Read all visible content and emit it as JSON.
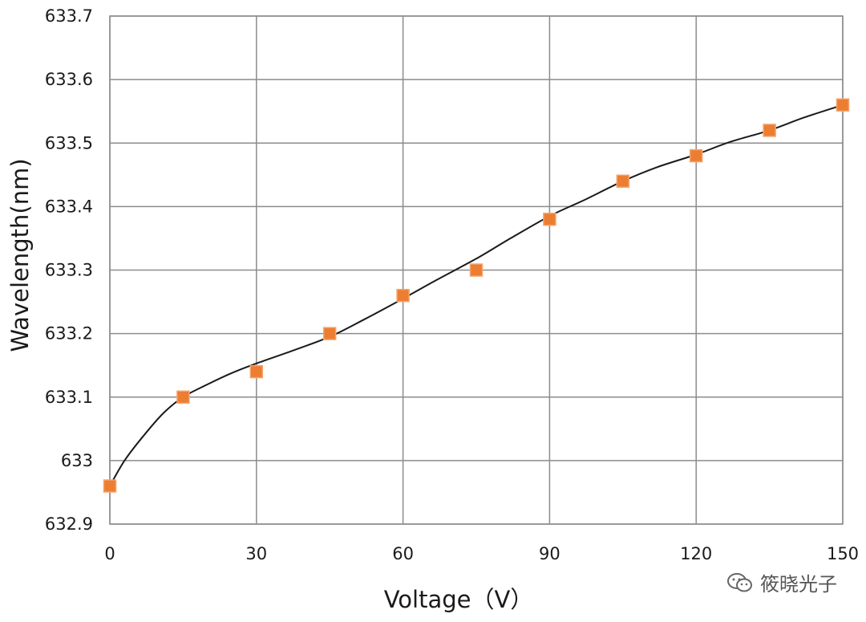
{
  "chart_data": {
    "type": "scatter",
    "title": "",
    "xlabel": "Voltage（V）",
    "ylabel": "Wavelength(nm)",
    "xlim": [
      0,
      150
    ],
    "ylim": [
      632.9,
      633.7
    ],
    "xticks": [
      0,
      30,
      60,
      90,
      120,
      150
    ],
    "xtick_labels": [
      "0",
      "30",
      "60",
      "90",
      "120",
      "150"
    ],
    "yticks": [
      632.9,
      633.0,
      633.1,
      633.2,
      633.3,
      633.4,
      633.5,
      633.6,
      633.7
    ],
    "ytick_labels": [
      "632.9",
      "633",
      "633.1",
      "633.2",
      "633.3",
      "633.4",
      "633.5",
      "633.6",
      "633.7"
    ],
    "grid": true,
    "marker": "square",
    "series": [
      {
        "x": [
          0,
          15,
          30,
          45,
          60,
          75,
          90,
          105,
          120,
          135,
          150
        ],
        "y": [
          632.96,
          633.1,
          633.14,
          633.2,
          633.26,
          633.3,
          633.38,
          633.44,
          633.48,
          633.52,
          633.56
        ],
        "color": "#ed7d31"
      }
    ],
    "trendline": {
      "type": "smooth",
      "color": "#1a1a1a",
      "x": [
        0,
        3,
        7,
        11,
        15,
        20,
        25,
        30,
        37,
        45,
        52,
        60,
        67,
        75,
        82,
        90,
        97,
        105,
        112,
        120,
        127,
        135,
        142,
        150
      ],
      "y": [
        632.96,
        633.0,
        633.04,
        633.075,
        633.1,
        633.12,
        633.138,
        633.153,
        633.172,
        633.195,
        633.222,
        633.255,
        633.285,
        633.318,
        633.35,
        633.385,
        633.41,
        633.44,
        633.462,
        633.482,
        633.502,
        633.52,
        633.54,
        633.56
      ]
    }
  },
  "watermark": {
    "text": "筱晓光子",
    "icon": "wechat-icon"
  }
}
